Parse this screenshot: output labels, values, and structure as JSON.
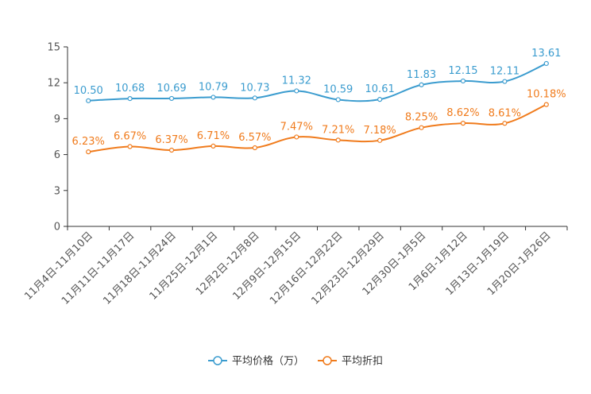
{
  "chart_data": {
    "type": "line",
    "title": "",
    "xlabel": "",
    "ylabel": "",
    "ylim": [
      0,
      15
    ],
    "yticks": [
      0,
      3,
      6,
      9,
      12,
      15
    ],
    "categories": [
      "11月4日-11月10日",
      "11月11日-11月17日",
      "11月18日-11月24日",
      "11月25日-12月1日",
      "12月2日-12月8日",
      "12月9日-12月15日",
      "12月16日-12月22日",
      "12月23日-12月29日",
      "12月30日-1月5日",
      "1月6日-1月12日",
      "1月13日-1月19日",
      "1月20日-1月26日"
    ],
    "series": [
      {
        "name": "平均价格（万）",
        "color": "#3b9ccf",
        "values": [
          10.5,
          10.68,
          10.69,
          10.79,
          10.73,
          11.32,
          10.59,
          10.61,
          11.83,
          12.15,
          12.11,
          13.61
        ],
        "labels": [
          "10.50",
          "10.68",
          "10.69",
          "10.79",
          "10.73",
          "11.32",
          "10.59",
          "10.61",
          "11.83",
          "12.15",
          "12.11",
          "13.61"
        ]
      },
      {
        "name": "平均折扣",
        "color": "#f07b1c",
        "values": [
          6.23,
          6.67,
          6.37,
          6.71,
          6.57,
          7.47,
          7.21,
          7.18,
          8.25,
          8.62,
          8.61,
          10.18
        ],
        "labels": [
          "6.23%",
          "6.67%",
          "6.37%",
          "6.71%",
          "6.57%",
          "7.47%",
          "7.21%",
          "7.18%",
          "8.25%",
          "8.62%",
          "8.61%",
          "10.18%"
        ]
      }
    ],
    "legend_position": "bottom-center",
    "grid": false
  }
}
